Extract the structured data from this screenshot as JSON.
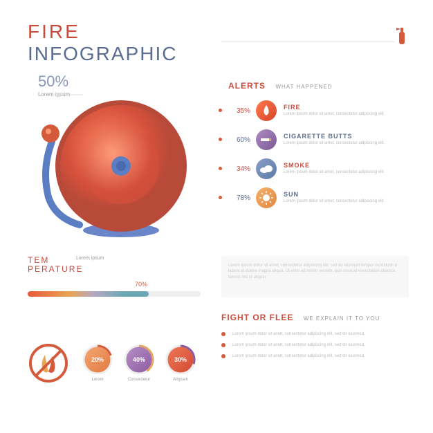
{
  "header": {
    "line1": "FIRE",
    "line2": "INFOGRAPHIC",
    "line1_color": "#c94a3b",
    "line2_color": "#5a6c8f",
    "ext_color": "#d55a3b"
  },
  "main_pct": {
    "value": "50%",
    "value_color": "#8a96b8",
    "sub": "Lorem ipsum",
    "hammer_color": "#d55a3b"
  },
  "bell": {
    "outer": "#b84a3a",
    "inner_light": "#ff8866",
    "inner_dark": "#d5503b",
    "center": "#5a7dc4",
    "arm": "#5a7dc4",
    "base": "#6a86c8"
  },
  "alerts": {
    "title": "ALERTS",
    "title_color": "#c94a3b",
    "sub": "WHAT HAPPENED",
    "dot_color": "#d55a3b",
    "items": [
      {
        "pct": "35%",
        "name": "FIRE",
        "name_color": "#c94a3b",
        "icon_bg": "linear-gradient(135deg,#ff7a4d,#d5442a)",
        "icon": "flame",
        "desc": "Lorem ipsum dolor sit amet, consectetur adipiscing elit."
      },
      {
        "pct": "60%",
        "name": "CIGARETTE BUTTS",
        "name_color": "#5a6c8f",
        "icon_bg": "linear-gradient(135deg,#b08bc4,#7a5a94)",
        "icon": "cig",
        "desc": "Lorem ipsum dolor sit amet, consectetur adipiscing elit."
      },
      {
        "pct": "34%",
        "name": "SMOKE",
        "name_color": "#c94a3b",
        "icon_bg": "linear-gradient(135deg,#8aa0c4,#5a7aa8)",
        "icon": "cloud",
        "desc": "Lorem ipsum dolor sit amet, consectetur adipiscing elit."
      },
      {
        "pct": "78%",
        "name": "SUN",
        "name_color": "#5a6c8f",
        "icon_bg": "linear-gradient(135deg,#f5b06a,#e08840)",
        "icon": "sun",
        "desc": "Lorem ipsum dolor sit amet, consectetur adipiscing elit."
      }
    ]
  },
  "temperature": {
    "title1": "TEM",
    "title2": "PERATURE",
    "title_color": "#c94a3b",
    "sub": "Lorem ipsum",
    "pct": "70%",
    "pct_color": "#d55a3b",
    "fill_width": 70,
    "gradient": "linear-gradient(90deg,#e85a3b 0%,#e8a552 35%,#b5a8c4 55%,#6aa8b5 80%)",
    "track": "#eee"
  },
  "info_box": {
    "text": "Lorem ipsum dolor sit amet, consectetur adipiscing elit, sed do eiusmod tempor incididunt ut labore et dolore magna aliqua. Ut enim ad minim veniam, quis nostrud exercitation ullamco laboris nisi ut aliquip."
  },
  "fight": {
    "title": "FIGHT OR FLEE",
    "title_color": "#c94a3b",
    "sub": "WE EXPLAIN IT TO YOU",
    "dot_color": "#d55a3b",
    "items": [
      {
        "text": "Lorem ipsum dolor sit amet, consectetur adipiscing elit, sed do eiusmod."
      },
      {
        "text": "Lorem ipsum dolor sit amet, consectetur adipiscing elit, sed do eiusmod."
      },
      {
        "text": "Lorem ipsum dolor sit amet, consectetur adipiscing elit, sed do eiusmod."
      }
    ]
  },
  "bottom": {
    "no_fire": {
      "ring": "#d55a3b",
      "flame1": "#e8a552",
      "flame2": "#d55a3b"
    },
    "rings": [
      {
        "pct": "20%",
        "label": "Lorem",
        "bg": "linear-gradient(135deg,#f5a872,#e07840)",
        "ring": "#d55a3b",
        "arc": 20
      },
      {
        "pct": "40%",
        "label": "Consectetur",
        "bg": "linear-gradient(135deg,#b890c8,#8a5aa0)",
        "ring": "#e8a560",
        "arc": 40
      },
      {
        "pct": "30%",
        "label": "Aliquam",
        "bg": "linear-gradient(135deg,#ef7a5a,#d04830)",
        "ring": "#8a5aa0",
        "arc": 30
      }
    ]
  }
}
